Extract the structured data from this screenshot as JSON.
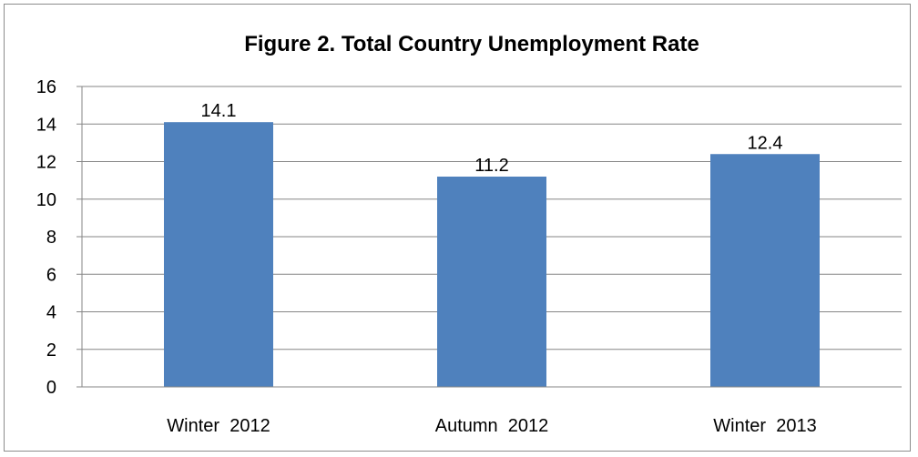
{
  "chart_data": {
    "type": "bar",
    "title": "Figure 2. Total Country Unemployment Rate",
    "xlabel": "",
    "ylabel": "",
    "categories": [
      "Winter  2012",
      "Autumn  2012",
      "Winter  2013"
    ],
    "values": [
      14.1,
      11.2,
      12.4
    ],
    "value_labels": [
      "14.1",
      "11.2",
      "12.4"
    ],
    "ylim": [
      0,
      16
    ],
    "yticks": [
      0,
      2,
      4,
      6,
      8,
      10,
      12,
      14,
      16
    ],
    "ytick_labels": [
      "0",
      "2",
      "4",
      "6",
      "8",
      "10",
      "12",
      "14",
      "16"
    ],
    "grid": true,
    "legend": "none",
    "bar_color": "#4f81bd",
    "grid_color": "#868686"
  }
}
